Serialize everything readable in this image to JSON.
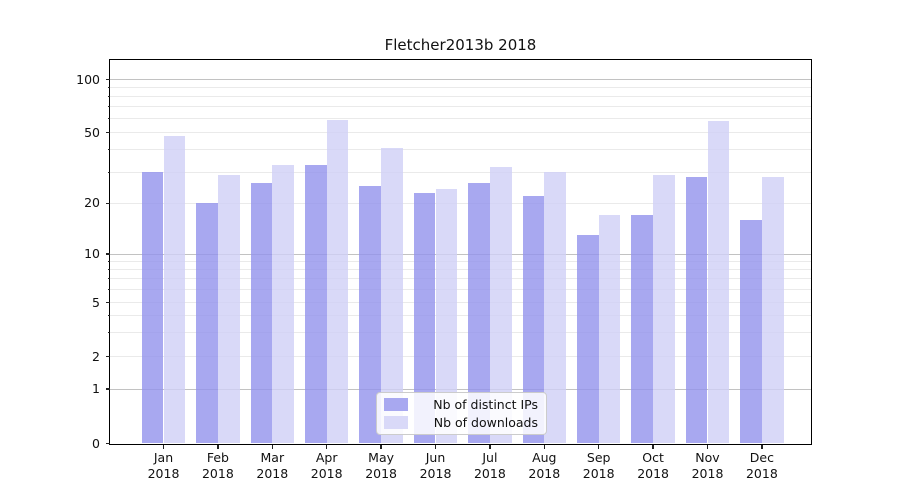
{
  "chart_data": {
    "type": "bar",
    "title": "Fletcher2013b 2018",
    "x_categories": [
      {
        "month": "Jan",
        "year": "2018"
      },
      {
        "month": "Feb",
        "year": "2018"
      },
      {
        "month": "Mar",
        "year": "2018"
      },
      {
        "month": "Apr",
        "year": "2018"
      },
      {
        "month": "May",
        "year": "2018"
      },
      {
        "month": "Jun",
        "year": "2018"
      },
      {
        "month": "Jul",
        "year": "2018"
      },
      {
        "month": "Aug",
        "year": "2018"
      },
      {
        "month": "Sep",
        "year": "2018"
      },
      {
        "month": "Oct",
        "year": "2018"
      },
      {
        "month": "Nov",
        "year": "2018"
      },
      {
        "month": "Dec",
        "year": "2018"
      }
    ],
    "series": [
      {
        "name": "Nb of distinct IPs",
        "color": "rgba(146,146,236,0.8)",
        "solid_color": "#a8a8f0",
        "values": [
          30,
          20,
          26,
          33,
          25,
          23,
          26,
          22,
          13,
          17,
          28,
          16
        ]
      },
      {
        "name": "Nb of downloads",
        "color": "rgba(208,208,246,0.8)",
        "solid_color": "#d9d9f8",
        "values": [
          48,
          29,
          33,
          59,
          41,
          24,
          32,
          30,
          17,
          29,
          58,
          28
        ]
      }
    ],
    "y_axis": {
      "scale": "log-like (linear segment 0 to 1)",
      "tick_labels": [
        0,
        1,
        2,
        5,
        10,
        20,
        50,
        100
      ],
      "major_gridline_values": [
        1,
        10,
        100
      ],
      "minor_gridline_values": [
        2,
        3,
        4,
        5,
        6,
        7,
        8,
        9,
        20,
        30,
        40,
        50,
        60,
        70,
        80,
        90
      ],
      "ylim_top_approx": 130
    },
    "grid": true,
    "legend": {
      "position": "lower center",
      "entries": [
        "Nb of distinct IPs",
        "Nb of downloads"
      ]
    },
    "colors": {
      "major_grid": "#c2c2c2",
      "minor_grid": "#eaeaea",
      "spine": "#000000",
      "text": "#111111",
      "background": "#ffffff"
    }
  }
}
